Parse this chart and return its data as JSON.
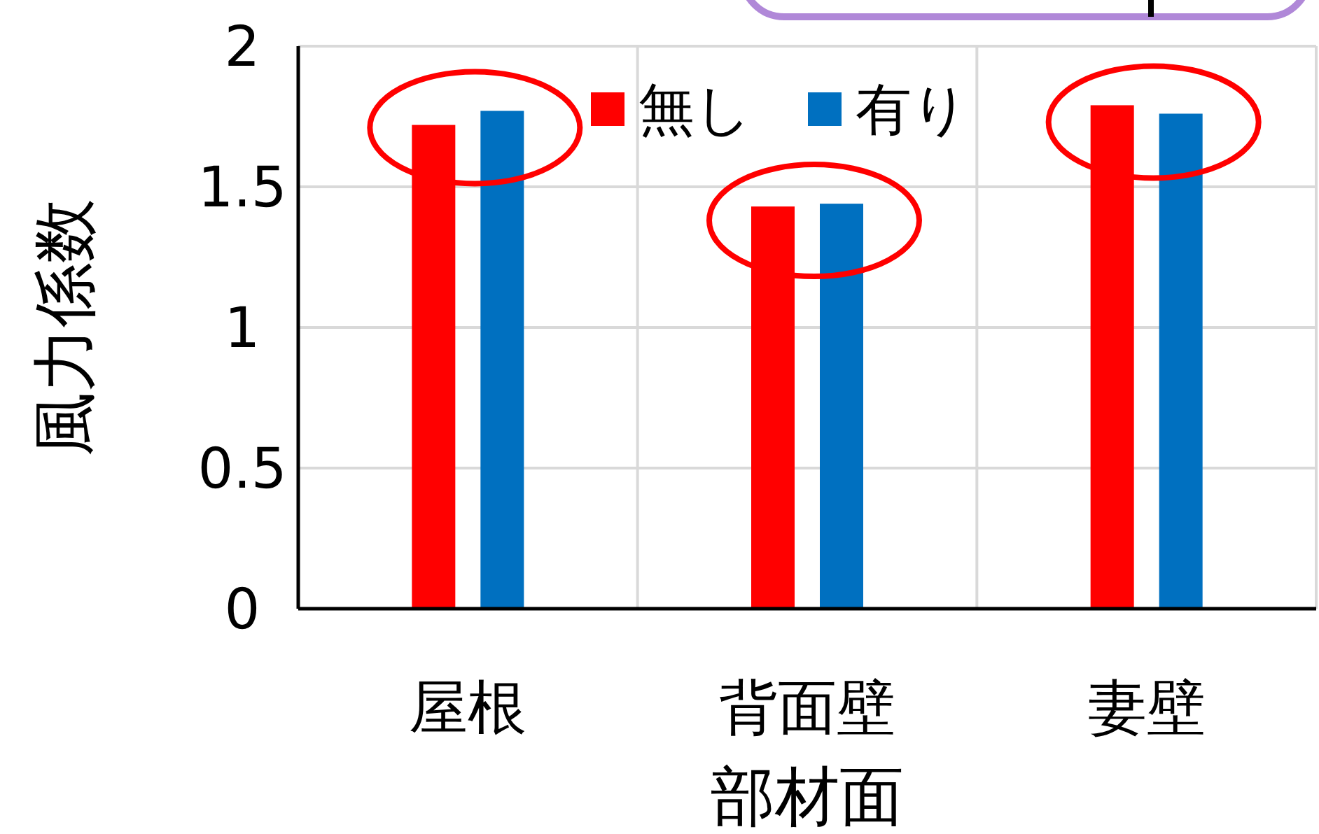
{
  "chart_data": {
    "type": "bar",
    "xlabel": "部材面",
    "ylabel": "風力係数",
    "categories": [
      "屋根",
      "背面壁",
      "妻壁"
    ],
    "series": [
      {
        "name": "無し",
        "color": "#ff0000",
        "values": [
          1.72,
          1.43,
          1.79
        ]
      },
      {
        "name": "有り",
        "color": "#0070c0",
        "values": [
          1.77,
          1.44,
          1.76
        ]
      }
    ],
    "ylim": [
      0,
      2
    ],
    "yticks": [
      0,
      0.5,
      1,
      1.5,
      2
    ],
    "grid": true,
    "legend": "top"
  }
}
